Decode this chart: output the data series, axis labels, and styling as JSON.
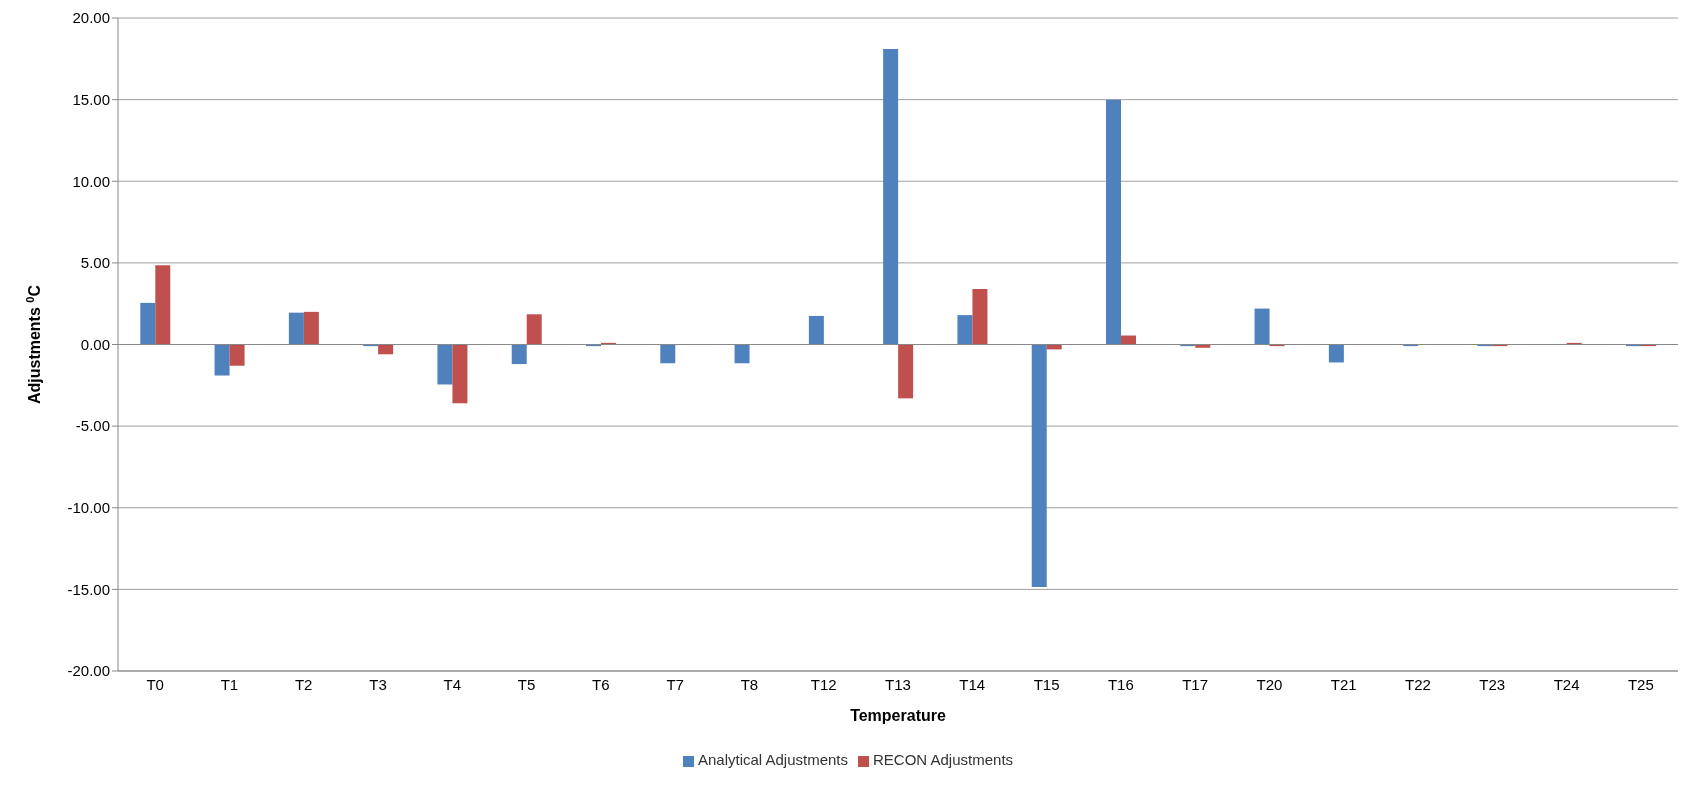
{
  "chart_data": {
    "type": "bar",
    "xlabel": "Temperature",
    "ylabel": "Adjustments $^{0}$C",
    "categories": [
      "T0",
      "T1",
      "T2",
      "T3",
      "T4",
      "T5",
      "T6",
      "T7",
      "T8",
      "T12",
      "T13",
      "T14",
      "T15",
      "T16",
      "T17",
      "T20",
      "T21",
      "T22",
      "T23",
      "T24",
      "T25"
    ],
    "series": [
      {
        "name": "Analytical Adjustments",
        "color": "#4f81bd",
        "values": [
          2.55,
          -1.9,
          1.95,
          -0.1,
          -2.45,
          -1.2,
          -0.1,
          -1.15,
          -1.15,
          1.75,
          18.1,
          1.8,
          -14.85,
          15.0,
          -0.1,
          2.2,
          -1.1,
          -0.1,
          -0.1,
          null,
          -0.1
        ]
      },
      {
        "name": "RECON Adjustments",
        "color": "#c0504d",
        "values": [
          4.85,
          -1.3,
          2.0,
          -0.6,
          -3.6,
          1.85,
          0.1,
          null,
          null,
          null,
          -3.3,
          3.4,
          -0.3,
          0.55,
          -0.2,
          -0.1,
          null,
          null,
          -0.1,
          0.1,
          -0.1
        ]
      }
    ],
    "ylim": [
      -20,
      20
    ],
    "yticks": [
      {
        "value": -20,
        "label": "-20.00"
      },
      {
        "value": -15,
        "label": "-15.00"
      },
      {
        "value": -10,
        "label": "-10.00"
      },
      {
        "value": -5,
        "label": "-5.00"
      },
      {
        "value": 0,
        "label": "0.00"
      },
      {
        "value": 5,
        "label": "5.00"
      },
      {
        "value": 10,
        "label": "10.00"
      },
      {
        "value": 15,
        "label": "15.00"
      },
      {
        "value": 20,
        "label": "20.00"
      }
    ],
    "grid": "y",
    "legend": "bottom"
  }
}
